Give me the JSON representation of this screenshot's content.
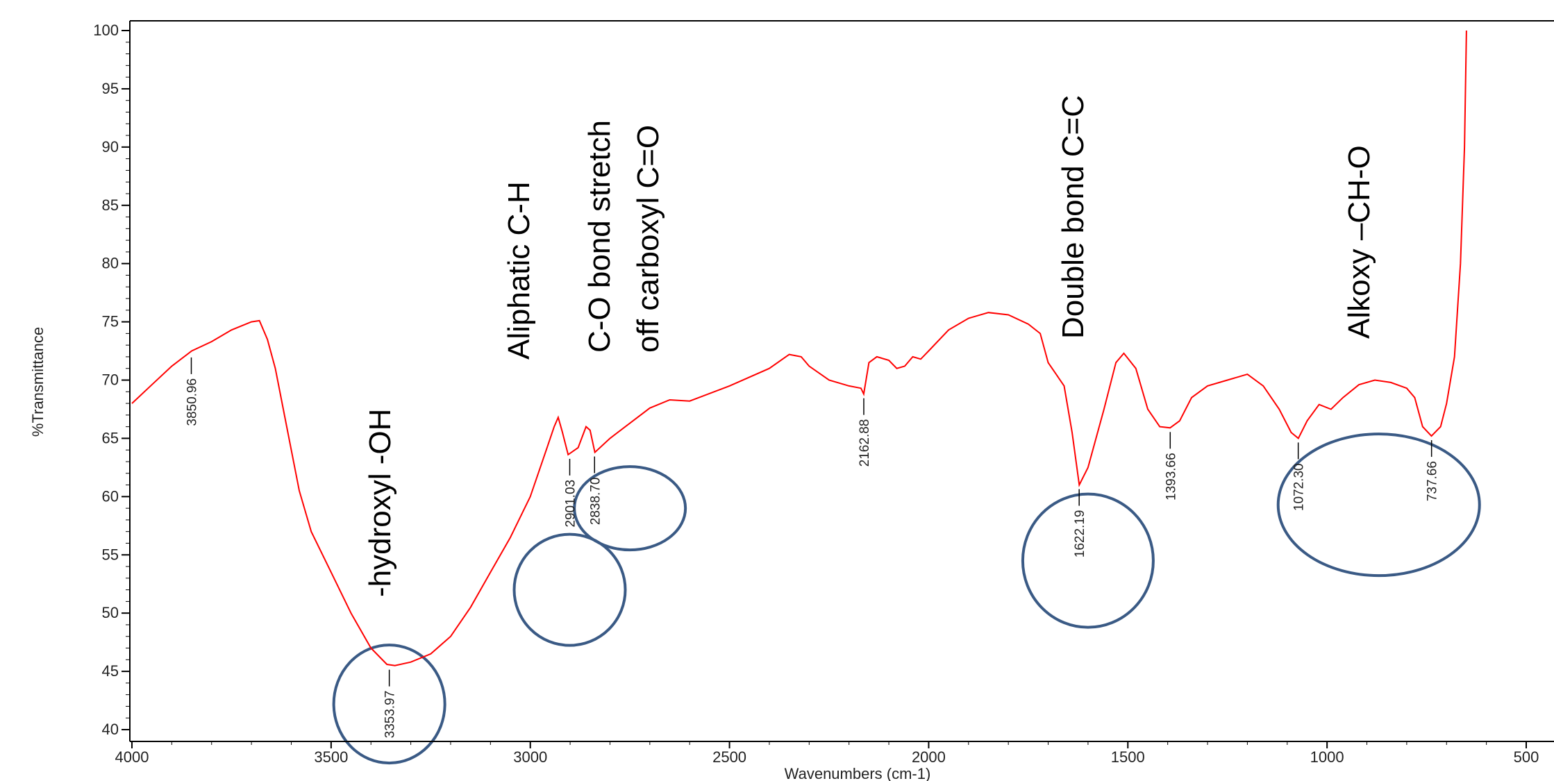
{
  "chart_data": {
    "type": "line",
    "title": "",
    "xlabel": "Wavenumbers (cm-1)",
    "ylabel": "%Transmittance",
    "xlim": [
      4000,
      500
    ],
    "ylim": [
      40,
      100
    ],
    "x_reversed": true,
    "xticks": [
      4000,
      3500,
      3000,
      2500,
      2000,
      1500,
      1000,
      500
    ],
    "yticks": [
      40,
      45,
      50,
      55,
      60,
      65,
      70,
      75,
      80,
      85,
      90,
      95,
      100
    ],
    "grid": false,
    "line_color": "#ff0000",
    "circle_color": "#3a5a85",
    "series": [
      {
        "points": [
          [
            4000,
            68
          ],
          [
            3950,
            69.6
          ],
          [
            3900,
            71.2
          ],
          [
            3850,
            72.5
          ],
          [
            3800,
            73.3
          ],
          [
            3750,
            74.3
          ],
          [
            3700,
            75.0
          ],
          [
            3680,
            75.1
          ],
          [
            3660,
            73.5
          ],
          [
            3640,
            71.0
          ],
          [
            3620,
            67.5
          ],
          [
            3600,
            64.0
          ],
          [
            3580,
            60.5
          ],
          [
            3550,
            57.0
          ],
          [
            3500,
            53.5
          ],
          [
            3450,
            50.0
          ],
          [
            3400,
            47.0
          ],
          [
            3360,
            45.6
          ],
          [
            3340,
            45.5
          ],
          [
            3300,
            45.8
          ],
          [
            3250,
            46.5
          ],
          [
            3200,
            48.0
          ],
          [
            3150,
            50.5
          ],
          [
            3100,
            53.5
          ],
          [
            3050,
            56.5
          ],
          [
            3000,
            60.0
          ],
          [
            2960,
            64.0
          ],
          [
            2940,
            66.0
          ],
          [
            2930,
            66.8
          ],
          [
            2920,
            65.6
          ],
          [
            2905,
            63.6
          ],
          [
            2880,
            64.2
          ],
          [
            2860,
            66.0
          ],
          [
            2850,
            65.7
          ],
          [
            2838,
            63.8
          ],
          [
            2800,
            65.0
          ],
          [
            2700,
            67.6
          ],
          [
            2650,
            68.3
          ],
          [
            2600,
            68.2
          ],
          [
            2500,
            69.5
          ],
          [
            2400,
            71.0
          ],
          [
            2350,
            72.2
          ],
          [
            2320,
            72.0
          ],
          [
            2300,
            71.2
          ],
          [
            2250,
            70.0
          ],
          [
            2200,
            69.5
          ],
          [
            2170,
            69.3
          ],
          [
            2163,
            68.8
          ],
          [
            2150,
            71.5
          ],
          [
            2130,
            72.0
          ],
          [
            2100,
            71.7
          ],
          [
            2080,
            71.0
          ],
          [
            2060,
            71.2
          ],
          [
            2040,
            72.0
          ],
          [
            2020,
            71.8
          ],
          [
            2000,
            72.5
          ],
          [
            1950,
            74.3
          ],
          [
            1900,
            75.3
          ],
          [
            1850,
            75.8
          ],
          [
            1800,
            75.6
          ],
          [
            1750,
            74.8
          ],
          [
            1720,
            74.0
          ],
          [
            1700,
            71.5
          ],
          [
            1680,
            70.5
          ],
          [
            1660,
            69.5
          ],
          [
            1640,
            65.5
          ],
          [
            1622,
            61.0
          ],
          [
            1600,
            62.5
          ],
          [
            1560,
            67.5
          ],
          [
            1530,
            71.5
          ],
          [
            1510,
            72.3
          ],
          [
            1480,
            71.0
          ],
          [
            1450,
            67.5
          ],
          [
            1420,
            66.0
          ],
          [
            1394,
            65.9
          ],
          [
            1370,
            66.5
          ],
          [
            1340,
            68.5
          ],
          [
            1300,
            69.5
          ],
          [
            1250,
            70.0
          ],
          [
            1200,
            70.5
          ],
          [
            1160,
            69.5
          ],
          [
            1120,
            67.5
          ],
          [
            1090,
            65.5
          ],
          [
            1072,
            65.0
          ],
          [
            1050,
            66.5
          ],
          [
            1020,
            67.9
          ],
          [
            990,
            67.5
          ],
          [
            960,
            68.5
          ],
          [
            920,
            69.6
          ],
          [
            880,
            70.0
          ],
          [
            840,
            69.8
          ],
          [
            800,
            69.3
          ],
          [
            780,
            68.5
          ],
          [
            760,
            66.0
          ],
          [
            738,
            65.2
          ],
          [
            715,
            66.0
          ],
          [
            700,
            68.0
          ],
          [
            680,
            72.0
          ],
          [
            665,
            80.0
          ],
          [
            655,
            90.0
          ],
          [
            650,
            100.0
          ]
        ]
      }
    ],
    "peak_labels": [
      {
        "x": 3850.96,
        "y": 72.3,
        "label": "3850.96"
      },
      {
        "x": 3353.97,
        "y": 45.5,
        "label": "3353.97"
      },
      {
        "x": 2901.03,
        "y": 63.6,
        "label": "2901.03"
      },
      {
        "x": 2838.7,
        "y": 63.8,
        "label": "2838.70"
      },
      {
        "x": 2162.88,
        "y": 68.8,
        "label": "2162.88"
      },
      {
        "x": 1622.19,
        "y": 61.0,
        "label": "1622.19"
      },
      {
        "x": 1393.66,
        "y": 65.9,
        "label": "1393.66"
      },
      {
        "x": 1072.3,
        "y": 65.0,
        "label": "1072.30"
      },
      {
        "x": 737.66,
        "y": 65.2,
        "label": "737.66"
      }
    ],
    "annotations": [
      {
        "text": "-hydroxyl -OH"
      },
      {
        "text": "Aliphatic C-H"
      },
      {
        "text": "C-O bond stretch"
      },
      {
        "text": "off carboxyl C=O"
      },
      {
        "text": "Double bond C=C"
      },
      {
        "text": "Alkoxy –CH-O"
      }
    ]
  }
}
